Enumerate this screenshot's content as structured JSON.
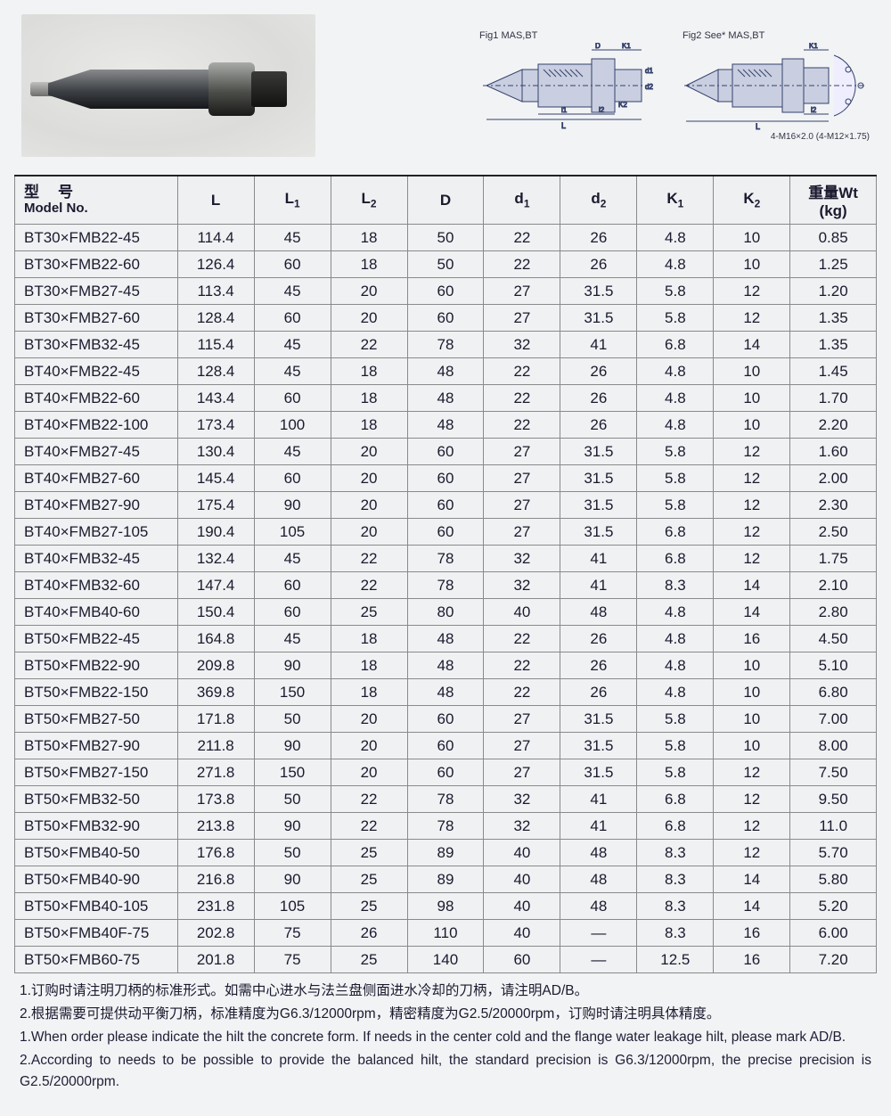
{
  "diagrams": {
    "fig1_label": "Fig1\nMAS,BT",
    "fig2_label": "Fig2 See*\nMAS,BT",
    "fig2_footnote": "4-M16×2.0\n(4-M12×1.75)",
    "dim_labels": [
      "D",
      "K1",
      "d1",
      "d2",
      "K2",
      "L",
      "l1",
      "l2"
    ]
  },
  "table": {
    "headers": {
      "model_cn": "型　号",
      "model_en": "Model No.",
      "L": "L",
      "L1": "L1",
      "L2": "L2",
      "D": "D",
      "d1": "d1",
      "d2": "d2",
      "K1": "K1",
      "K2": "K2",
      "wt": "重量Wt\n(kg)"
    },
    "rows": [
      [
        "BT30×FMB22-45",
        "114.4",
        "45",
        "18",
        "50",
        "22",
        "26",
        "4.8",
        "10",
        "0.85"
      ],
      [
        "BT30×FMB22-60",
        "126.4",
        "60",
        "18",
        "50",
        "22",
        "26",
        "4.8",
        "10",
        "1.25"
      ],
      [
        "BT30×FMB27-45",
        "113.4",
        "45",
        "20",
        "60",
        "27",
        "31.5",
        "5.8",
        "12",
        "1.20"
      ],
      [
        "BT30×FMB27-60",
        "128.4",
        "60",
        "20",
        "60",
        "27",
        "31.5",
        "5.8",
        "12",
        "1.35"
      ],
      [
        "BT30×FMB32-45",
        "115.4",
        "45",
        "22",
        "78",
        "32",
        "41",
        "6.8",
        "14",
        "1.35"
      ],
      [
        "BT40×FMB22-45",
        "128.4",
        "45",
        "18",
        "48",
        "22",
        "26",
        "4.8",
        "10",
        "1.45"
      ],
      [
        "BT40×FMB22-60",
        "143.4",
        "60",
        "18",
        "48",
        "22",
        "26",
        "4.8",
        "10",
        "1.70"
      ],
      [
        "BT40×FMB22-100",
        "173.4",
        "100",
        "18",
        "48",
        "22",
        "26",
        "4.8",
        "10",
        "2.20"
      ],
      [
        "BT40×FMB27-45",
        "130.4",
        "45",
        "20",
        "60",
        "27",
        "31.5",
        "5.8",
        "12",
        "1.60"
      ],
      [
        "BT40×FMB27-60",
        "145.4",
        "60",
        "20",
        "60",
        "27",
        "31.5",
        "5.8",
        "12",
        "2.00"
      ],
      [
        "BT40×FMB27-90",
        "175.4",
        "90",
        "20",
        "60",
        "27",
        "31.5",
        "5.8",
        "12",
        "2.30"
      ],
      [
        "BT40×FMB27-105",
        "190.4",
        "105",
        "20",
        "60",
        "27",
        "31.5",
        "6.8",
        "12",
        "2.50"
      ],
      [
        "BT40×FMB32-45",
        "132.4",
        "45",
        "22",
        "78",
        "32",
        "41",
        "6.8",
        "12",
        "1.75"
      ],
      [
        "BT40×FMB32-60",
        "147.4",
        "60",
        "22",
        "78",
        "32",
        "41",
        "8.3",
        "14",
        "2.10"
      ],
      [
        "BT40×FMB40-60",
        "150.4",
        "60",
        "25",
        "80",
        "40",
        "48",
        "4.8",
        "14",
        "2.80"
      ],
      [
        "BT50×FMB22-45",
        "164.8",
        "45",
        "18",
        "48",
        "22",
        "26",
        "4.8",
        "16",
        "4.50"
      ],
      [
        "BT50×FMB22-90",
        "209.8",
        "90",
        "18",
        "48",
        "22",
        "26",
        "4.8",
        "10",
        "5.10"
      ],
      [
        "BT50×FMB22-150",
        "369.8",
        "150",
        "18",
        "48",
        "22",
        "26",
        "4.8",
        "10",
        "6.80"
      ],
      [
        "BT50×FMB27-50",
        "171.8",
        "50",
        "20",
        "60",
        "27",
        "31.5",
        "5.8",
        "10",
        "7.00"
      ],
      [
        "BT50×FMB27-90",
        "211.8",
        "90",
        "20",
        "60",
        "27",
        "31.5",
        "5.8",
        "10",
        "8.00"
      ],
      [
        "BT50×FMB27-150",
        "271.8",
        "150",
        "20",
        "60",
        "27",
        "31.5",
        "5.8",
        "12",
        "7.50"
      ],
      [
        "BT50×FMB32-50",
        "173.8",
        "50",
        "22",
        "78",
        "32",
        "41",
        "6.8",
        "12",
        "9.50"
      ],
      [
        "BT50×FMB32-90",
        "213.8",
        "90",
        "22",
        "78",
        "32",
        "41",
        "6.8",
        "12",
        "11.0"
      ],
      [
        "BT50×FMB40-50",
        "176.8",
        "50",
        "25",
        "89",
        "40",
        "48",
        "8.3",
        "12",
        "5.70"
      ],
      [
        "BT50×FMB40-90",
        "216.8",
        "90",
        "25",
        "89",
        "40",
        "48",
        "8.3",
        "14",
        "5.80"
      ],
      [
        "BT50×FMB40-105",
        "231.8",
        "105",
        "25",
        "98",
        "40",
        "48",
        "8.3",
        "14",
        "5.20"
      ],
      [
        "BT50×FMB40F-75",
        "202.8",
        "75",
        "26",
        "110",
        "40",
        "—",
        "8.3",
        "16",
        "6.00"
      ],
      [
        "BT50×FMB60-75",
        "201.8",
        "75",
        "25",
        "140",
        "60",
        "—",
        "12.5",
        "16",
        "7.20"
      ]
    ]
  },
  "notes": {
    "cn1": "1.订购时请注明刀柄的标准形式。如需中心进水与法兰盘侧面进水冷却的刀柄，请注明AD/B。",
    "cn2": "2.根据需要可提供动平衡刀柄，标准精度为G6.3/12000rpm，精密精度为G2.5/20000rpm，订购时请注明具体精度。",
    "en1": "1.When order please indicate the hilt the concrete form. If needs in the center cold and the flange water leakage hilt, please mark AD/B.",
    "en2": "2.According to needs to be possible to provide the balanced hilt, the standard precision is G6.3/12000rpm, the precise precision is G2.5/20000rpm."
  },
  "style": {
    "page_bg": "#f2f3f5",
    "border_color": "#8a8a8c",
    "header_font_size": 17,
    "cell_font_size": 17,
    "note_font_size": 15.5
  }
}
